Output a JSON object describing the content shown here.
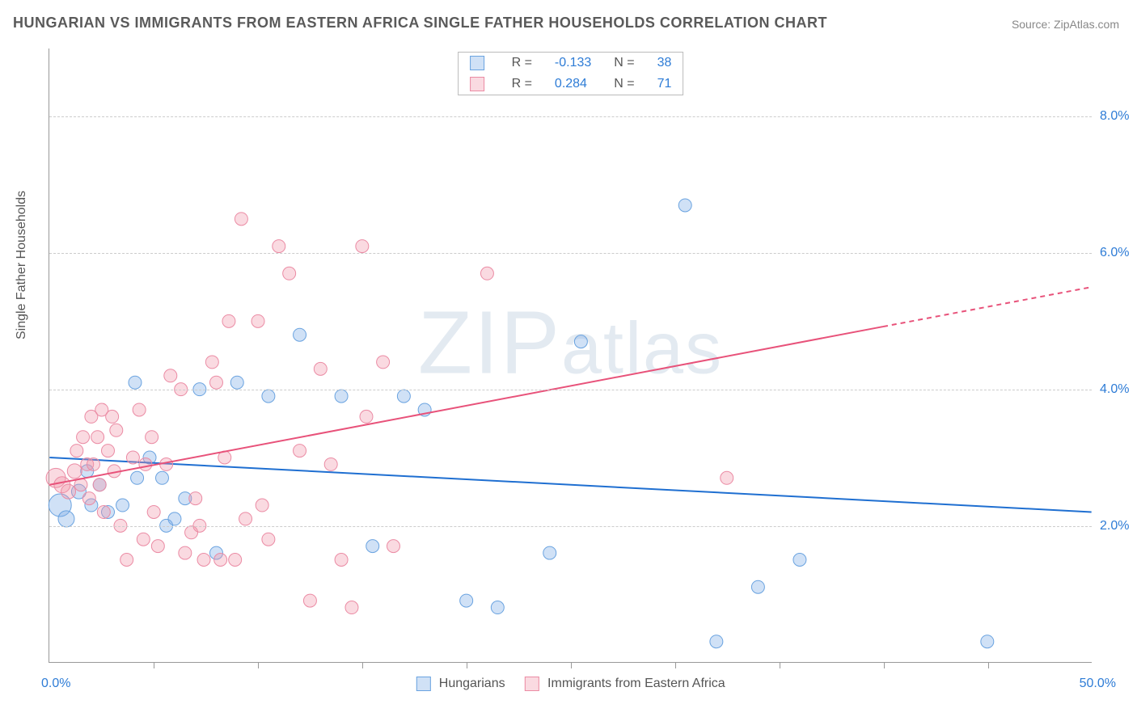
{
  "title": "HUNGARIAN VS IMMIGRANTS FROM EASTERN AFRICA SINGLE FATHER HOUSEHOLDS CORRELATION CHART",
  "source": "Source: ZipAtlas.com",
  "ylabel": "Single Father Households",
  "watermark_a": "ZIP",
  "watermark_b": "atlas",
  "chart": {
    "type": "scatter",
    "background_color": "#ffffff",
    "grid_color": "#cccccc",
    "title_fontsize": 18,
    "title_color": "#5a5a5a",
    "label_fontsize": 16,
    "xlim": [
      0,
      50
    ],
    "ylim": [
      0,
      9
    ],
    "yticks": [
      2,
      4,
      6,
      8
    ],
    "ytick_labels": [
      "2.0%",
      "4.0%",
      "6.0%",
      "8.0%"
    ],
    "xtick_positions": [
      5,
      10,
      15,
      20,
      25,
      30,
      35,
      40,
      45
    ],
    "xaxis_left_label": "0.0%",
    "xaxis_right_label": "50.0%",
    "series": [
      {
        "name": "Hungarians",
        "color_fill": "rgba(120,170,230,0.35)",
        "color_stroke": "#6aa3e0",
        "line_color": "#1f6fd1",
        "R": "-0.133",
        "N": "38",
        "trend": {
          "x1": 0,
          "y1": 3.0,
          "x2": 50,
          "y2": 2.2,
          "dashed_from_x": 50
        },
        "points": [
          {
            "x": 0.5,
            "y": 2.3,
            "r": 14
          },
          {
            "x": 0.8,
            "y": 2.1,
            "r": 10
          },
          {
            "x": 1.4,
            "y": 2.5,
            "r": 9
          },
          {
            "x": 1.8,
            "y": 2.8,
            "r": 8
          },
          {
            "x": 2.0,
            "y": 2.3,
            "r": 8
          },
          {
            "x": 2.4,
            "y": 2.6,
            "r": 8
          },
          {
            "x": 2.8,
            "y": 2.2,
            "r": 8
          },
          {
            "x": 3.5,
            "y": 2.3,
            "r": 8
          },
          {
            "x": 4.1,
            "y": 4.1,
            "r": 8
          },
          {
            "x": 4.2,
            "y": 2.7,
            "r": 8
          },
          {
            "x": 4.8,
            "y": 3.0,
            "r": 8
          },
          {
            "x": 5.4,
            "y": 2.7,
            "r": 8
          },
          {
            "x": 5.6,
            "y": 2.0,
            "r": 8
          },
          {
            "x": 6.0,
            "y": 2.1,
            "r": 8
          },
          {
            "x": 6.5,
            "y": 2.4,
            "r": 8
          },
          {
            "x": 7.2,
            "y": 4.0,
            "r": 8
          },
          {
            "x": 8.0,
            "y": 1.6,
            "r": 8
          },
          {
            "x": 9.0,
            "y": 4.1,
            "r": 8
          },
          {
            "x": 10.5,
            "y": 3.9,
            "r": 8
          },
          {
            "x": 12.0,
            "y": 4.8,
            "r": 8
          },
          {
            "x": 14.0,
            "y": 3.9,
            "r": 8
          },
          {
            "x": 15.5,
            "y": 1.7,
            "r": 8
          },
          {
            "x": 17.0,
            "y": 3.9,
            "r": 8
          },
          {
            "x": 18.0,
            "y": 3.7,
            "r": 8
          },
          {
            "x": 20.0,
            "y": 0.9,
            "r": 8
          },
          {
            "x": 21.5,
            "y": 0.8,
            "r": 8
          },
          {
            "x": 24.0,
            "y": 1.6,
            "r": 8
          },
          {
            "x": 25.5,
            "y": 4.7,
            "r": 8
          },
          {
            "x": 30.5,
            "y": 6.7,
            "r": 8
          },
          {
            "x": 32.0,
            "y": 0.3,
            "r": 8
          },
          {
            "x": 34.0,
            "y": 1.1,
            "r": 8
          },
          {
            "x": 36.0,
            "y": 1.5,
            "r": 8
          },
          {
            "x": 45.0,
            "y": 0.3,
            "r": 8
          }
        ]
      },
      {
        "name": "Immigrants from Eastern Africa",
        "color_fill": "rgba(240,150,170,0.35)",
        "color_stroke": "#eb8ba4",
        "line_color": "#e8527a",
        "R": "0.284",
        "N": "71",
        "trend": {
          "x1": 0,
          "y1": 2.6,
          "x2": 50,
          "y2": 5.5,
          "dashed_from_x": 40
        },
        "points": [
          {
            "x": 0.3,
            "y": 2.7,
            "r": 12
          },
          {
            "x": 0.6,
            "y": 2.6,
            "r": 10
          },
          {
            "x": 0.9,
            "y": 2.5,
            "r": 9
          },
          {
            "x": 1.2,
            "y": 2.8,
            "r": 9
          },
          {
            "x": 1.3,
            "y": 3.1,
            "r": 8
          },
          {
            "x": 1.5,
            "y": 2.6,
            "r": 8
          },
          {
            "x": 1.6,
            "y": 3.3,
            "r": 8
          },
          {
            "x": 1.8,
            "y": 2.9,
            "r": 8
          },
          {
            "x": 1.9,
            "y": 2.4,
            "r": 8
          },
          {
            "x": 2.0,
            "y": 3.6,
            "r": 8
          },
          {
            "x": 2.1,
            "y": 2.9,
            "r": 8
          },
          {
            "x": 2.3,
            "y": 3.3,
            "r": 8
          },
          {
            "x": 2.4,
            "y": 2.6,
            "r": 8
          },
          {
            "x": 2.5,
            "y": 3.7,
            "r": 8
          },
          {
            "x": 2.6,
            "y": 2.2,
            "r": 8
          },
          {
            "x": 2.8,
            "y": 3.1,
            "r": 8
          },
          {
            "x": 3.0,
            "y": 3.6,
            "r": 8
          },
          {
            "x": 3.1,
            "y": 2.8,
            "r": 8
          },
          {
            "x": 3.2,
            "y": 3.4,
            "r": 8
          },
          {
            "x": 3.4,
            "y": 2.0,
            "r": 8
          },
          {
            "x": 3.7,
            "y": 1.5,
            "r": 8
          },
          {
            "x": 4.0,
            "y": 3.0,
            "r": 8
          },
          {
            "x": 4.3,
            "y": 3.7,
            "r": 8
          },
          {
            "x": 4.5,
            "y": 1.8,
            "r": 8
          },
          {
            "x": 4.6,
            "y": 2.9,
            "r": 8
          },
          {
            "x": 4.9,
            "y": 3.3,
            "r": 8
          },
          {
            "x": 5.0,
            "y": 2.2,
            "r": 8
          },
          {
            "x": 5.2,
            "y": 1.7,
            "r": 8
          },
          {
            "x": 5.6,
            "y": 2.9,
            "r": 8
          },
          {
            "x": 5.8,
            "y": 4.2,
            "r": 8
          },
          {
            "x": 6.3,
            "y": 4.0,
            "r": 8
          },
          {
            "x": 6.5,
            "y": 1.6,
            "r": 8
          },
          {
            "x": 6.8,
            "y": 1.9,
            "r": 8
          },
          {
            "x": 7.0,
            "y": 2.4,
            "r": 8
          },
          {
            "x": 7.2,
            "y": 2.0,
            "r": 8
          },
          {
            "x": 7.4,
            "y": 1.5,
            "r": 8
          },
          {
            "x": 7.8,
            "y": 4.4,
            "r": 8
          },
          {
            "x": 8.0,
            "y": 4.1,
            "r": 8
          },
          {
            "x": 8.2,
            "y": 1.5,
            "r": 8
          },
          {
            "x": 8.4,
            "y": 3.0,
            "r": 8
          },
          {
            "x": 8.6,
            "y": 5.0,
            "r": 8
          },
          {
            "x": 8.9,
            "y": 1.5,
            "r": 8
          },
          {
            "x": 9.2,
            "y": 6.5,
            "r": 8
          },
          {
            "x": 9.4,
            "y": 2.1,
            "r": 8
          },
          {
            "x": 10.0,
            "y": 5.0,
            "r": 8
          },
          {
            "x": 10.2,
            "y": 2.3,
            "r": 8
          },
          {
            "x": 10.5,
            "y": 1.8,
            "r": 8
          },
          {
            "x": 11.0,
            "y": 6.1,
            "r": 8
          },
          {
            "x": 11.5,
            "y": 5.7,
            "r": 8
          },
          {
            "x": 12.0,
            "y": 3.1,
            "r": 8
          },
          {
            "x": 12.5,
            "y": 0.9,
            "r": 8
          },
          {
            "x": 13.0,
            "y": 4.3,
            "r": 8
          },
          {
            "x": 13.5,
            "y": 2.9,
            "r": 8
          },
          {
            "x": 14.0,
            "y": 1.5,
            "r": 8
          },
          {
            "x": 14.5,
            "y": 0.8,
            "r": 8
          },
          {
            "x": 15.0,
            "y": 6.1,
            "r": 8
          },
          {
            "x": 15.2,
            "y": 3.6,
            "r": 8
          },
          {
            "x": 16.0,
            "y": 4.4,
            "r": 8
          },
          {
            "x": 16.5,
            "y": 1.7,
            "r": 8
          },
          {
            "x": 21.0,
            "y": 5.7,
            "r": 8
          },
          {
            "x": 32.5,
            "y": 2.7,
            "r": 8
          }
        ]
      }
    ]
  },
  "legend_labels": {
    "R": "R =",
    "N": "N ="
  }
}
